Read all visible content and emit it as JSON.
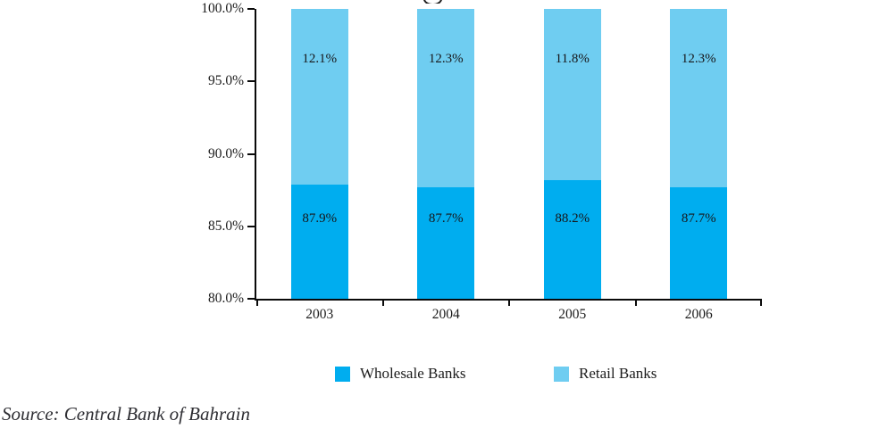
{
  "chart_data": {
    "type": "bar",
    "stacked": true,
    "categories": [
      "2003",
      "2004",
      "2005",
      "2006"
    ],
    "series": [
      {
        "name": "Wholesale Banks",
        "color": "#00ADEF",
        "values": [
          87.9,
          87.7,
          88.2,
          87.7
        ],
        "labels": [
          "87.9%",
          "87.7%",
          "88.2%",
          "87.7%"
        ]
      },
      {
        "name": "Retail Banks",
        "color": "#6FCDF1",
        "values": [
          12.1,
          12.3,
          11.8,
          12.3
        ],
        "labels": [
          "12.1%",
          "12.3%",
          "11.8%",
          "12.3%"
        ]
      }
    ],
    "title": "",
    "xlabel": "",
    "ylabel": "",
    "ylim": [
      80,
      100
    ],
    "yticks": [
      "100.0%",
      "95.0%",
      "90.0%",
      "85.0%",
      "80.0%"
    ],
    "ytick_values": [
      100,
      95,
      90,
      85,
      80
    ],
    "grid": false,
    "legend_position": "bottom",
    "axis_color": "#0a0a0a"
  },
  "source_note": "Source: Central Bank of Bahrain"
}
